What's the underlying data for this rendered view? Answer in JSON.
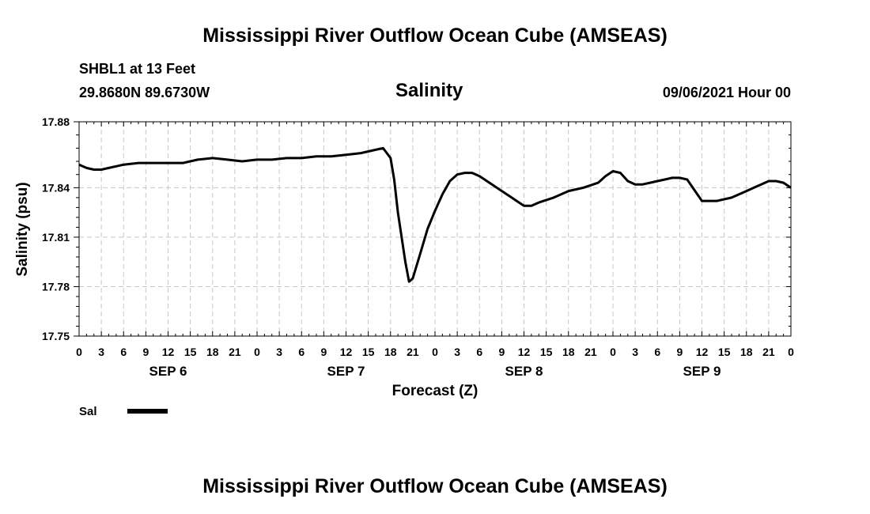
{
  "header": {
    "title": "Mississippi River Outflow Ocean Cube (AMSEAS)",
    "station": "SHBL1 at 13 Feet",
    "coords": "29.8680N  89.6730W",
    "variable": "Salinity",
    "datetime": "09/06/2021 Hour 00"
  },
  "footer": {
    "title": "Mississippi River Outflow Ocean Cube (AMSEAS)"
  },
  "legend": {
    "label": "Sal",
    "position": "bottom-left"
  },
  "colors": {
    "line": "#000000",
    "grid": "#c8c8c8",
    "background": "#ffffff"
  },
  "chart_data": {
    "type": "line",
    "title": "Salinity",
    "xlabel": "Forecast (Z)",
    "ylabel": "Salinity (psu)",
    "xlim": [
      0,
      96
    ],
    "ylim": [
      17.75,
      17.88
    ],
    "grid": true,
    "yticks": [
      17.75,
      17.78,
      17.81,
      17.84,
      17.88
    ],
    "xtick_labels": [
      "0",
      "3",
      "6",
      "9",
      "12",
      "15",
      "18",
      "21",
      "0",
      "3",
      "6",
      "9",
      "12",
      "15",
      "18",
      "21",
      "0",
      "3",
      "6",
      "9",
      "12",
      "15",
      "18",
      "21",
      "0",
      "3",
      "6",
      "9",
      "12",
      "15",
      "18",
      "21",
      "0"
    ],
    "date_labels": [
      "SEP 6",
      "SEP 7",
      "SEP 8",
      "SEP 9"
    ],
    "series": [
      {
        "name": "Sal",
        "x": [
          0,
          1,
          2,
          3,
          4,
          5,
          6,
          8,
          10,
          12,
          14,
          15,
          16,
          18,
          20,
          22,
          24,
          26,
          28,
          30,
          32,
          34,
          36,
          38,
          40,
          41,
          42,
          42.5,
          43,
          44,
          44.5,
          45,
          46,
          47,
          48,
          49,
          50,
          51,
          52,
          53,
          54,
          56,
          58,
          60,
          61,
          62,
          64,
          66,
          68,
          70,
          71,
          72,
          73,
          74,
          75,
          76,
          77,
          78,
          79,
          80,
          81,
          82,
          84,
          86,
          88,
          90,
          91,
          92,
          93,
          94,
          95,
          96
        ],
        "values": [
          17.854,
          17.852,
          17.851,
          17.851,
          17.852,
          17.853,
          17.854,
          17.855,
          17.855,
          17.855,
          17.855,
          17.856,
          17.857,
          17.858,
          17.857,
          17.856,
          17.857,
          17.857,
          17.858,
          17.858,
          17.859,
          17.859,
          17.86,
          17.861,
          17.863,
          17.864,
          17.858,
          17.845,
          17.825,
          17.795,
          17.783,
          17.785,
          17.8,
          17.815,
          17.826,
          17.836,
          17.844,
          17.848,
          17.849,
          17.849,
          17.847,
          17.841,
          17.835,
          17.829,
          17.829,
          17.831,
          17.834,
          17.838,
          17.84,
          17.843,
          17.847,
          17.85,
          17.849,
          17.844,
          17.842,
          17.842,
          17.843,
          17.844,
          17.845,
          17.846,
          17.846,
          17.845,
          17.832,
          17.832,
          17.834,
          17.838,
          17.84,
          17.842,
          17.844,
          17.844,
          17.843,
          17.84
        ]
      }
    ]
  }
}
